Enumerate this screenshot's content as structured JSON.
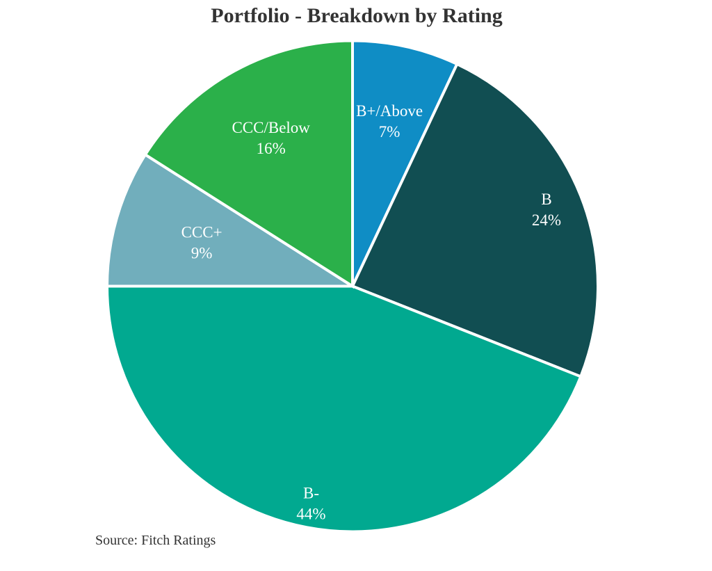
{
  "chart_data": {
    "type": "pie",
    "title": "Portfolio - Breakdown by Rating",
    "source": "Source: Fitch Ratings",
    "direction": "clockwise",
    "start_angle_deg": 0,
    "legend": "none",
    "label_color": "#ffffff",
    "separator_color": "#ffffff",
    "title_color": "#333333",
    "slices": [
      {
        "label": "B+/Above",
        "value": 7,
        "color": "#0f8dc5",
        "label_r": 0.69
      },
      {
        "label": "B",
        "value": 24,
        "color": "#114e52",
        "label_r": 0.85
      },
      {
        "label": "B-",
        "value": 44,
        "color": "#01a990",
        "label_r": 0.9
      },
      {
        "label": "CCC+",
        "value": 9,
        "color": "#71aebc",
        "label_r": 0.64
      },
      {
        "label": "CCC/Below",
        "value": 16,
        "color": "#2bb04a",
        "label_r": 0.69
      }
    ]
  }
}
